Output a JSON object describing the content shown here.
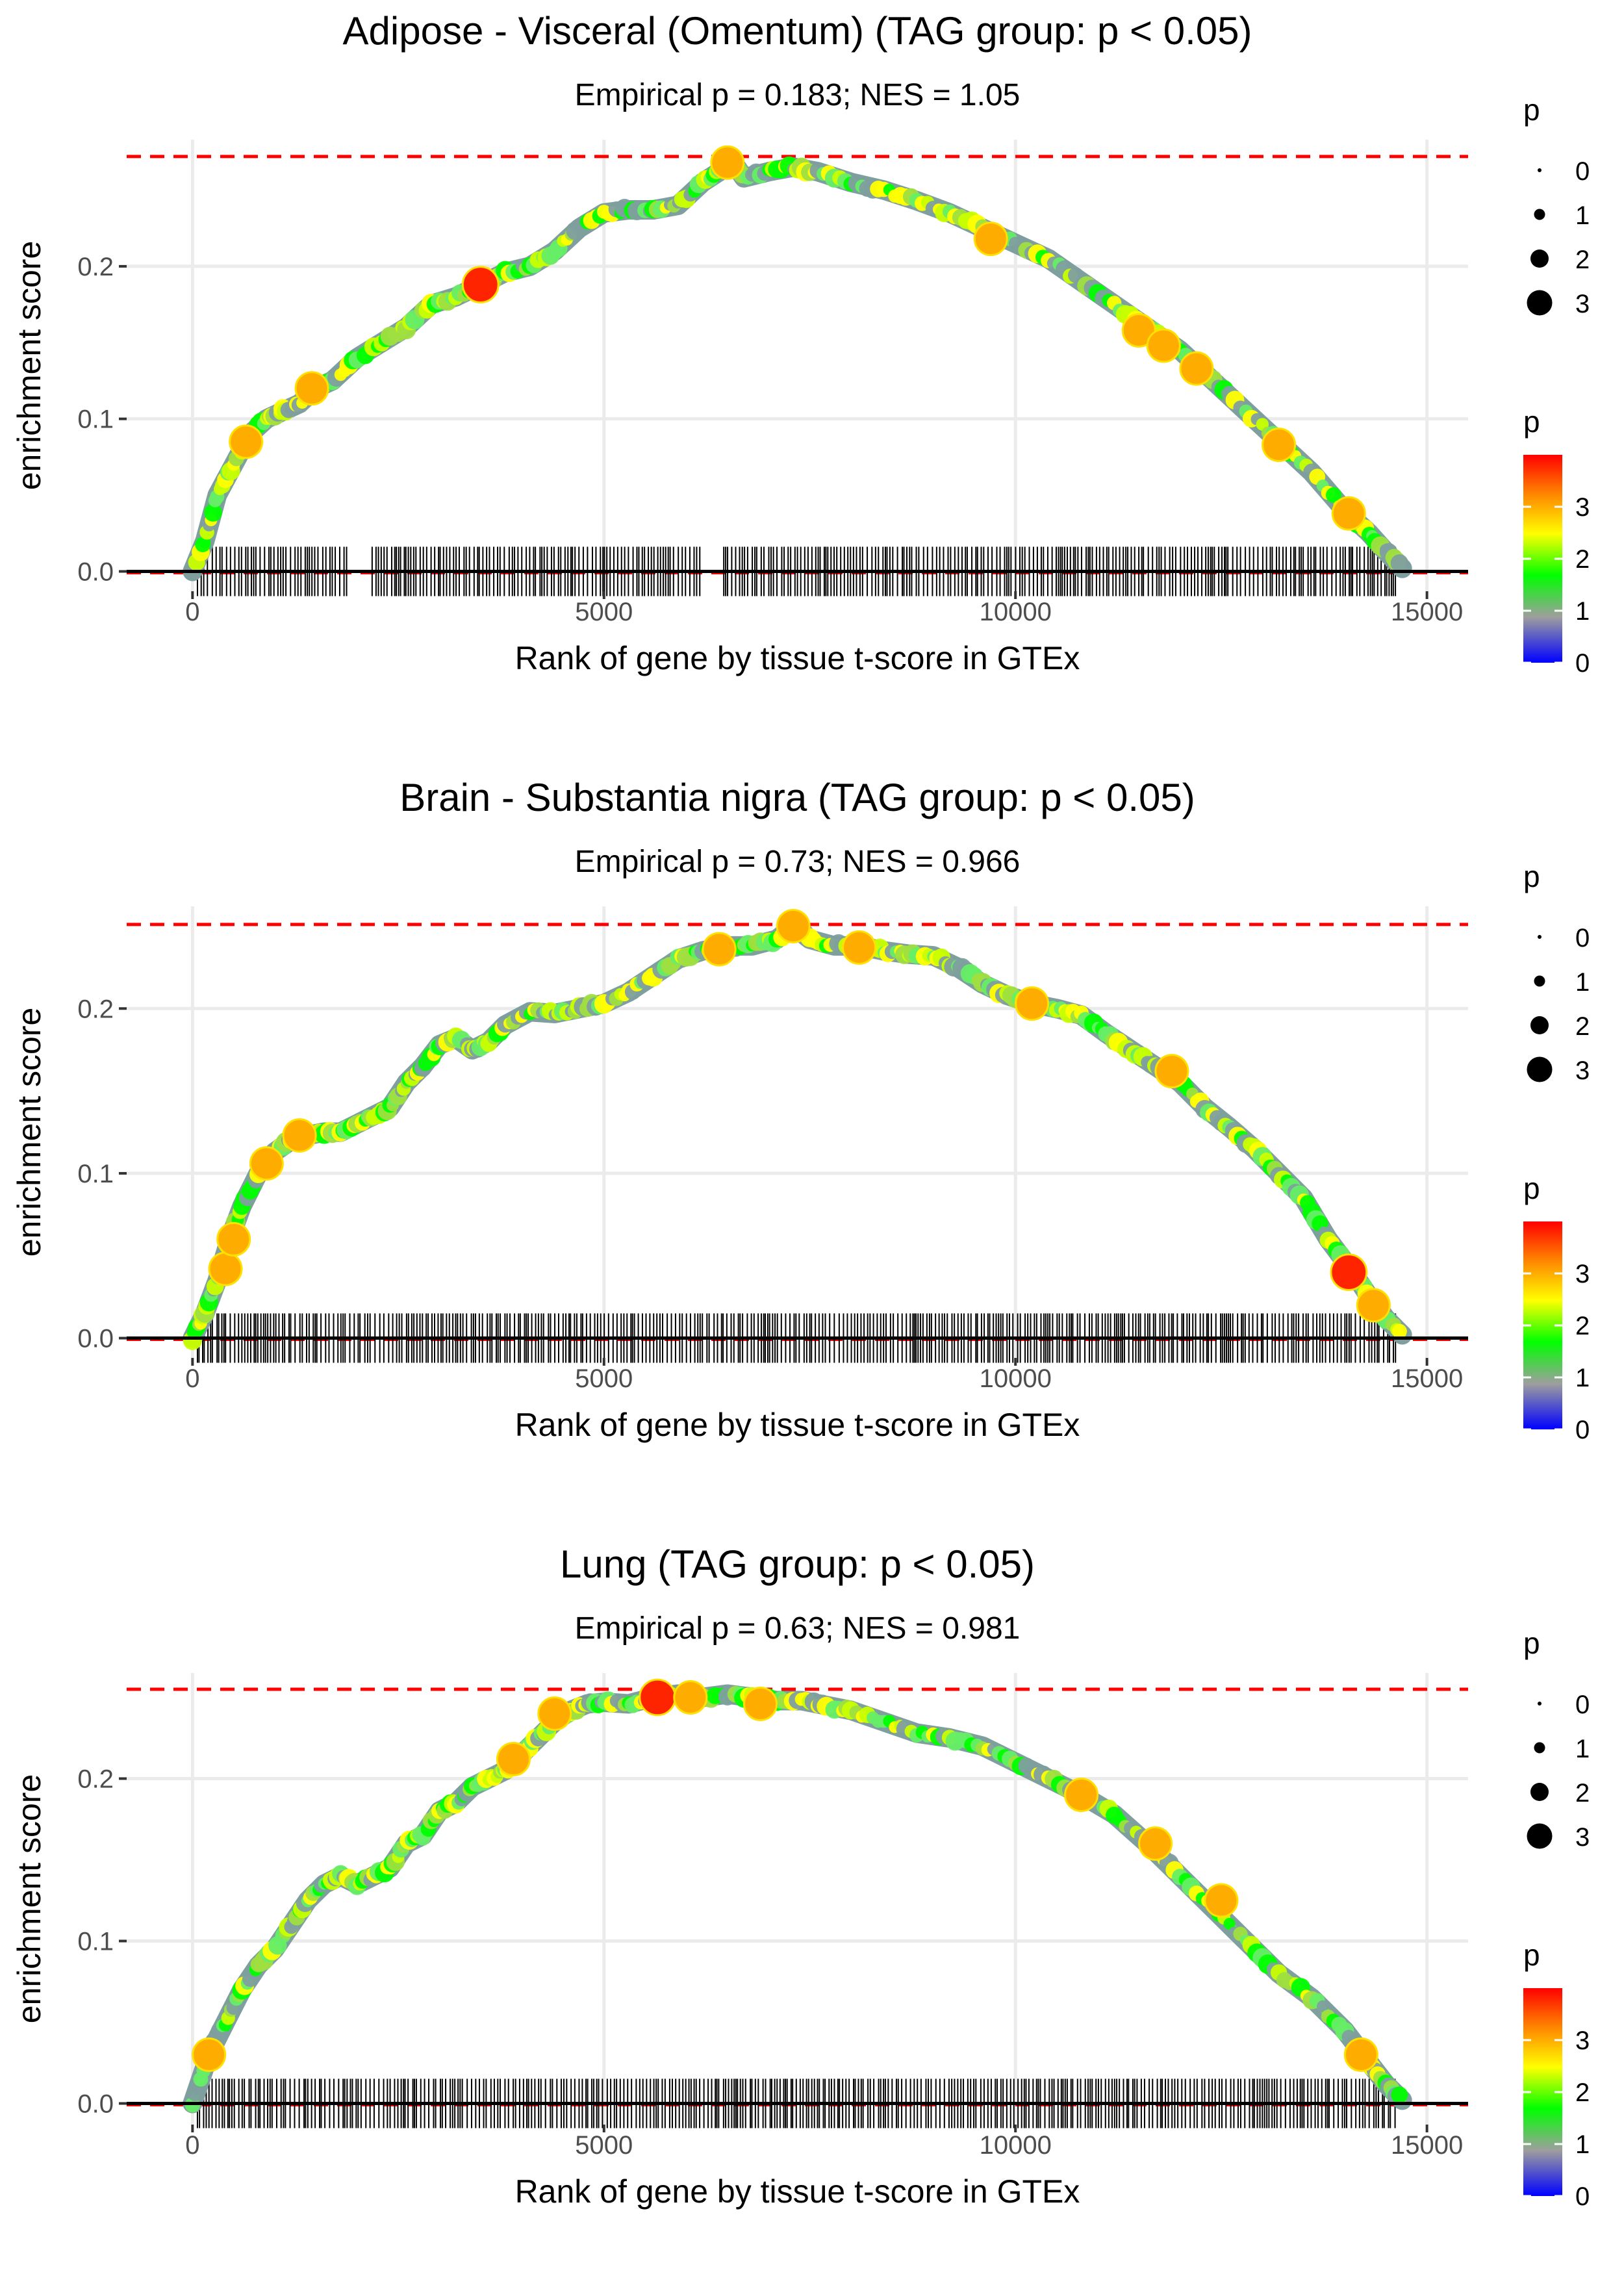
{
  "colors": {
    "background": "#ffffff",
    "grid": "#ebebeb",
    "threshold_line": "#ff0000",
    "baseline": "#000000",
    "rug": "#000000",
    "trace": "#7f9f9f",
    "gradient": [
      "#0000ff",
      "#9e9e9e",
      "#00ff00",
      "#ffff00",
      "#ff8000",
      "#ff0000"
    ]
  },
  "chart_data": [
    {
      "type": "line",
      "title": "Adipose - Visceral (Omentum) (TAG group: p < 0.05)",
      "subtitle": "Empirical p = 0.183; NES = 1.05",
      "xlabel": "Rank of gene by tissue t-score in GTEx",
      "ylabel": "enrichment score",
      "xlim": [
        -800,
        15500
      ],
      "ylim": [
        -0.013,
        0.283
      ],
      "xticks": [
        0,
        5000,
        10000,
        15000
      ],
      "xtick_labels": [
        "0",
        "5000",
        "10000",
        "15000"
      ],
      "yticks": [
        0.0,
        0.1,
        0.2
      ],
      "ytick_labels": [
        "0.0",
        "0.1",
        "0.2"
      ],
      "threshold_y": 0.272,
      "x": [
        0,
        150,
        300,
        500,
        700,
        900,
        1100,
        1300,
        1500,
        1700,
        2000,
        2300,
        2600,
        2900,
        3200,
        3500,
        3800,
        4100,
        4400,
        4700,
        5000,
        5300,
        5600,
        5900,
        6200,
        6400,
        6550,
        6700,
        7000,
        7300,
        7600,
        8000,
        8400,
        8800,
        9200,
        9600,
        10000,
        10400,
        10800,
        11200,
        11600,
        12000,
        12400,
        12800,
        13200,
        13600,
        14000,
        14300,
        14500,
        14700
      ],
      "y": [
        0.0,
        0.02,
        0.05,
        0.07,
        0.09,
        0.1,
        0.105,
        0.11,
        0.12,
        0.125,
        0.14,
        0.15,
        0.16,
        0.175,
        0.18,
        0.188,
        0.196,
        0.2,
        0.21,
        0.225,
        0.235,
        0.237,
        0.237,
        0.24,
        0.255,
        0.262,
        0.27,
        0.258,
        0.262,
        0.265,
        0.262,
        0.255,
        0.25,
        0.243,
        0.235,
        0.225,
        0.215,
        0.205,
        0.19,
        0.175,
        0.16,
        0.145,
        0.125,
        0.105,
        0.085,
        0.065,
        0.04,
        0.025,
        0.013,
        0.002
      ],
      "highlight_points": [
        {
          "x": 650,
          "y": 0.085,
          "p": 3.0
        },
        {
          "x": 1450,
          "y": 0.12,
          "p": 3.0
        },
        {
          "x": 3500,
          "y": 0.188,
          "p": 3.8
        },
        {
          "x": 6500,
          "y": 0.268,
          "p": 3.0
        },
        {
          "x": 9700,
          "y": 0.218,
          "p": 3.0
        },
        {
          "x": 11500,
          "y": 0.158,
          "p": 3.0
        },
        {
          "x": 11800,
          "y": 0.148,
          "p": 3.0
        },
        {
          "x": 12200,
          "y": 0.133,
          "p": 3.0
        },
        {
          "x": 13200,
          "y": 0.083,
          "p": 3.0
        },
        {
          "x": 14050,
          "y": 0.038,
          "p": 3.0
        }
      ],
      "rug_range": [
        60,
        14620
      ],
      "rug_gaps": [
        [
          1900,
          2150
        ],
        [
          6200,
          6450
        ]
      ],
      "legend_size": {
        "title": "p",
        "labels": [
          "0",
          "1",
          "2",
          "3"
        ]
      },
      "legend_color": {
        "title": "p",
        "labels": [
          "0",
          "1",
          "2",
          "3"
        ],
        "min": 0,
        "max": 4
      }
    },
    {
      "type": "line",
      "title": "Brain - Substantia nigra (TAG group: p < 0.05)",
      "subtitle": "Empirical p = 0.73; NES = 0.966",
      "xlabel": "Rank of gene by tissue t-score in GTEx",
      "ylabel": "enrichment score",
      "xlim": [
        -800,
        15500
      ],
      "ylim": [
        -0.012,
        0.262
      ],
      "xticks": [
        0,
        5000,
        10000,
        15000
      ],
      "xtick_labels": [
        "0",
        "5000",
        "10000",
        "15000"
      ],
      "yticks": [
        0.0,
        0.1,
        0.2
      ],
      "ytick_labels": [
        "0.0",
        "0.1",
        "0.2"
      ],
      "threshold_y": 0.251,
      "x": [
        0,
        150,
        300,
        450,
        600,
        800,
        1000,
        1200,
        1400,
        1600,
        1800,
        2000,
        2200,
        2400,
        2600,
        2800,
        3000,
        3200,
        3400,
        3600,
        3800,
        4100,
        4400,
        4700,
        5000,
        5300,
        5600,
        5900,
        6200,
        6500,
        6800,
        7100,
        7300,
        7500,
        7800,
        8100,
        8400,
        8700,
        9000,
        9300,
        9600,
        9900,
        10200,
        10500,
        10800,
        11100,
        11400,
        11700,
        12000,
        12300,
        12600,
        12900,
        13200,
        13500,
        13800,
        14100,
        14300,
        14500,
        14700
      ],
      "y": [
        0.0,
        0.015,
        0.035,
        0.06,
        0.08,
        0.1,
        0.113,
        0.12,
        0.123,
        0.125,
        0.125,
        0.13,
        0.135,
        0.14,
        0.155,
        0.165,
        0.178,
        0.182,
        0.175,
        0.18,
        0.19,
        0.198,
        0.197,
        0.2,
        0.203,
        0.21,
        0.22,
        0.23,
        0.235,
        0.238,
        0.238,
        0.242,
        0.25,
        0.242,
        0.238,
        0.238,
        0.235,
        0.233,
        0.232,
        0.225,
        0.215,
        0.208,
        0.203,
        0.2,
        0.196,
        0.185,
        0.175,
        0.165,
        0.155,
        0.14,
        0.128,
        0.115,
        0.1,
        0.085,
        0.06,
        0.04,
        0.025,
        0.012,
        0.002
      ],
      "highlight_points": [
        {
          "x": 400,
          "y": 0.042,
          "p": 3.0
        },
        {
          "x": 500,
          "y": 0.06,
          "p": 3.0
        },
        {
          "x": 900,
          "y": 0.106,
          "p": 3.0
        },
        {
          "x": 1300,
          "y": 0.123,
          "p": 3.0
        },
        {
          "x": 6400,
          "y": 0.236,
          "p": 3.0
        },
        {
          "x": 7300,
          "y": 0.25,
          "p": 3.0
        },
        {
          "x": 8100,
          "y": 0.237,
          "p": 3.0
        },
        {
          "x": 10200,
          "y": 0.203,
          "p": 3.0
        },
        {
          "x": 11900,
          "y": 0.162,
          "p": 3.0
        },
        {
          "x": 14050,
          "y": 0.04,
          "p": 3.8
        },
        {
          "x": 14350,
          "y": 0.02,
          "p": 3.0
        }
      ],
      "rug_range": [
        60,
        14620
      ],
      "rug_gaps": [],
      "legend_size": {
        "title": "p",
        "labels": [
          "0",
          "1",
          "2",
          "3"
        ]
      },
      "legend_color": {
        "title": "p",
        "labels": [
          "0",
          "1",
          "2",
          "3"
        ],
        "min": 0,
        "max": 4
      }
    },
    {
      "type": "line",
      "title": "Lung (TAG group: p < 0.05)",
      "subtitle": "Empirical p = 0.63; NES = 0.981",
      "xlabel": "Rank of gene by tissue t-score in GTEx",
      "ylabel": "enrichment score",
      "xlim": [
        -800,
        15500
      ],
      "ylim": [
        -0.013,
        0.265
      ],
      "xticks": [
        0,
        5000,
        10000,
        15000
      ],
      "xtick_labels": [
        "0",
        "5000",
        "10000",
        "15000"
      ],
      "yticks": [
        0.0,
        0.1,
        0.2
      ],
      "ytick_labels": [
        "0.0",
        "0.1",
        "0.2"
      ],
      "threshold_y": 0.255,
      "x": [
        0,
        200,
        400,
        600,
        800,
        1000,
        1200,
        1400,
        1600,
        1800,
        2000,
        2200,
        2400,
        2600,
        2800,
        3000,
        3200,
        3400,
        3600,
        3800,
        4000,
        4200,
        4400,
        4600,
        4800,
        5000,
        5300,
        5600,
        5900,
        6200,
        6500,
        6800,
        7100,
        7400,
        7700,
        8000,
        8400,
        8800,
        9200,
        9600,
        10000,
        10400,
        10800,
        11200,
        11600,
        12000,
        12400,
        12800,
        13200,
        13600,
        14000,
        14300,
        14500,
        14700
      ],
      "y": [
        0.0,
        0.03,
        0.05,
        0.07,
        0.085,
        0.095,
        0.11,
        0.125,
        0.135,
        0.14,
        0.135,
        0.14,
        0.145,
        0.16,
        0.165,
        0.18,
        0.185,
        0.195,
        0.2,
        0.205,
        0.215,
        0.225,
        0.235,
        0.242,
        0.246,
        0.247,
        0.246,
        0.25,
        0.252,
        0.25,
        0.252,
        0.25,
        0.248,
        0.248,
        0.245,
        0.242,
        0.235,
        0.228,
        0.225,
        0.22,
        0.21,
        0.2,
        0.19,
        0.178,
        0.16,
        0.14,
        0.12,
        0.1,
        0.08,
        0.065,
        0.045,
        0.025,
        0.012,
        0.002
      ],
      "highlight_points": [
        {
          "x": 200,
          "y": 0.03,
          "p": 3.0
        },
        {
          "x": 3900,
          "y": 0.212,
          "p": 3.0
        },
        {
          "x": 4400,
          "y": 0.24,
          "p": 3.0
        },
        {
          "x": 5650,
          "y": 0.25,
          "p": 3.8
        },
        {
          "x": 6050,
          "y": 0.25,
          "p": 3.0
        },
        {
          "x": 6900,
          "y": 0.246,
          "p": 3.0
        },
        {
          "x": 10800,
          "y": 0.19,
          "p": 3.0
        },
        {
          "x": 11700,
          "y": 0.16,
          "p": 3.0
        },
        {
          "x": 12500,
          "y": 0.125,
          "p": 3.0
        },
        {
          "x": 14200,
          "y": 0.03,
          "p": 3.0
        }
      ],
      "rug_range": [
        60,
        14620
      ],
      "rug_gaps": [],
      "legend_size": {
        "title": "p",
        "labels": [
          "0",
          "1",
          "2",
          "3"
        ]
      },
      "legend_color": {
        "title": "p",
        "labels": [
          "0",
          "1",
          "2",
          "3"
        ],
        "min": 0,
        "max": 4
      }
    }
  ]
}
